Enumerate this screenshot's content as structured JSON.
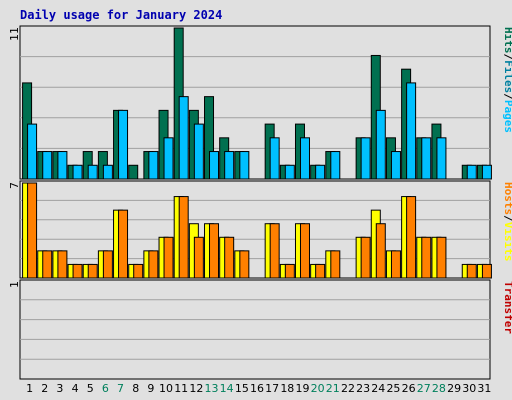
{
  "colors": {
    "background": "#e0e0e0",
    "grid": "#a0a0a0",
    "hits": "#007050",
    "files": "#0080a0",
    "pages": "#00c0ff",
    "visits": "#ffff00",
    "hosts": "#ff8000",
    "transfer": "#c00000",
    "weekday_label": "#000000",
    "weekend_label": "#00805c",
    "title": "#0000b0"
  },
  "chart_data": {
    "type": "bar",
    "title": "Daily usage for January 2024",
    "categories": [
      "1",
      "2",
      "3",
      "4",
      "5",
      "6",
      "7",
      "8",
      "9",
      "10",
      "11",
      "12",
      "13",
      "14",
      "15",
      "16",
      "17",
      "18",
      "19",
      "20",
      "21",
      "22",
      "23",
      "24",
      "25",
      "26",
      "27",
      "28",
      "29",
      "30",
      "31"
    ],
    "weekend_days": [
      "6",
      "7",
      "13",
      "14",
      "20",
      "21",
      "27",
      "28"
    ],
    "panels": [
      {
        "name": "hits-files-pages",
        "ymax": 11,
        "ymax_label": "11",
        "grid": true,
        "side_label": [
          {
            "text": "Hits",
            "color_key": "hits"
          },
          {
            "text": "/",
            "color_key": "weekday_label"
          },
          {
            "text": "Files",
            "color_key": "files"
          },
          {
            "text": "/",
            "color_key": "weekday_label"
          },
          {
            "text": "Pages",
            "color_key": "pages"
          }
        ],
        "series": [
          {
            "name": "Hits",
            "color_key": "hits",
            "values": [
              7,
              2,
              2,
              1,
              2,
              2,
              5,
              1,
              2,
              5,
              11,
              5,
              6,
              3,
              2,
              0,
              4,
              1,
              4,
              1,
              2,
              0,
              3,
              9,
              3,
              8,
              3,
              4,
              0,
              1,
              1
            ]
          },
          {
            "name": "Pages",
            "color_key": "pages",
            "values": [
              4,
              2,
              2,
              1,
              1,
              1,
              5,
              0,
              2,
              3,
              6,
              4,
              2,
              2,
              2,
              0,
              3,
              1,
              3,
              1,
              2,
              0,
              3,
              5,
              2,
              7,
              3,
              3,
              0,
              1,
              1
            ]
          }
        ]
      },
      {
        "name": "visits-hosts",
        "ymax": 7,
        "ymax_label": "7",
        "grid": true,
        "side_label": [
          {
            "text": "Hosts",
            "color_key": "hosts"
          },
          {
            "text": "/",
            "color_key": "weekday_label"
          },
          {
            "text": "Visits",
            "color_key": "visits"
          }
        ],
        "series": [
          {
            "name": "Visits",
            "color_key": "visits",
            "values": [
              7,
              2,
              2,
              1,
              1,
              2,
              5,
              1,
              2,
              3,
              6,
              4,
              4,
              3,
              2,
              0,
              4,
              1,
              4,
              1,
              2,
              0,
              3,
              5,
              2,
              6,
              3,
              3,
              0,
              1,
              1
            ]
          },
          {
            "name": "Hosts",
            "color_key": "hosts",
            "values": [
              7,
              2,
              2,
              1,
              1,
              2,
              5,
              1,
              2,
              3,
              6,
              3,
              4,
              3,
              2,
              0,
              4,
              1,
              4,
              1,
              2,
              0,
              3,
              4,
              2,
              6,
              3,
              3,
              0,
              1,
              1
            ]
          }
        ]
      },
      {
        "name": "transfer",
        "ymax": 1,
        "ymax_label": "1",
        "grid": true,
        "side_label": [
          {
            "text": "Transfer",
            "color_key": "transfer"
          }
        ],
        "series": [
          {
            "name": "Transfer",
            "color_key": "transfer",
            "values": [
              0,
              0,
              0,
              0,
              0,
              0,
              0,
              0,
              0,
              0,
              0,
              0,
              0,
              0,
              0,
              0,
              0,
              0,
              0,
              0,
              0,
              0,
              0,
              0,
              0,
              0,
              0,
              0,
              0,
              0,
              0
            ]
          }
        ]
      }
    ]
  }
}
